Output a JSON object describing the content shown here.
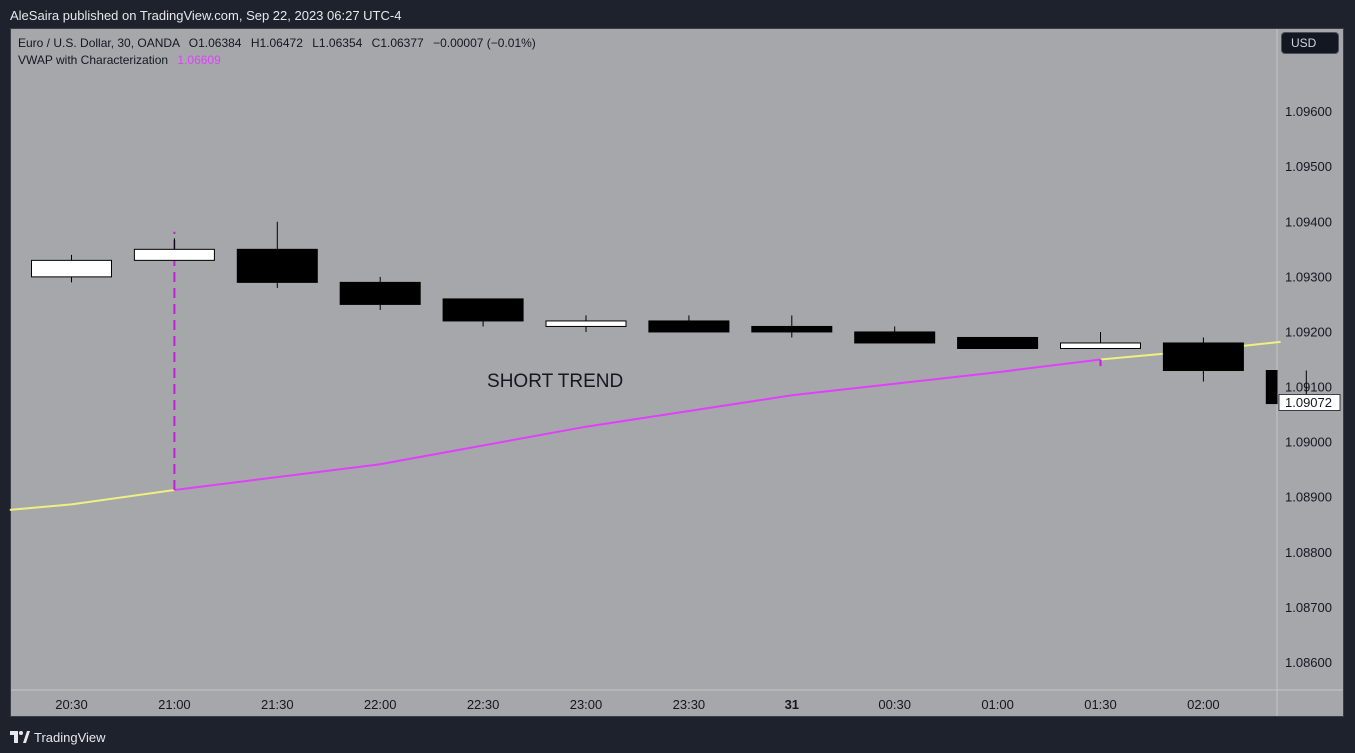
{
  "header": {
    "publisher_line": "AleSaira published on TradingView.com, Sep 22, 2023 06:27 UTC-4"
  },
  "legend": {
    "symbol": "Euro / U.S. Dollar, 30, OANDA",
    "o_label": "O",
    "o_value": "1.06384",
    "h_label": "H",
    "h_value": "1.06472",
    "l_label": "L",
    "l_value": "1.06354",
    "c_label": "C",
    "c_value": "1.06377",
    "change": "−0.00007 (−0.01%)",
    "indicator_name": "VWAP with Characterization",
    "indicator_value": "1.06609"
  },
  "currency_button": "USD",
  "brand": {
    "name": "TradingView"
  },
  "colors": {
    "background": "#a6a7ab",
    "up_candle": "#ffffff",
    "down_candle": "#000000",
    "vwap_normal": "#eef080",
    "vwap_highlight": "#e040fb",
    "marker_line": "#c21fd6"
  },
  "chart_data": {
    "type": "candlestick",
    "ylim": [
      1.0855,
      1.0975
    ],
    "x": [
      "20:30",
      "21:00",
      "21:30",
      "22:00",
      "22:30",
      "23:00",
      "23:30",
      "31",
      "00:30",
      "01:00",
      "01:30",
      "02:00",
      "02:30"
    ],
    "x_tick_labels": [
      "20:30",
      "21:00",
      "21:30",
      "22:00",
      "22:30",
      "23:00",
      "23:30",
      "31",
      "00:30",
      "01:00",
      "01:30",
      "02:00"
    ],
    "y_tick_labels": [
      "1.09600",
      "1.09500",
      "1.09400",
      "1.09300",
      "1.09200",
      "1.09100",
      "1.09000",
      "1.08900",
      "1.08800",
      "1.08700",
      "1.08600"
    ],
    "y_ticks": [
      1.096,
      1.095,
      1.094,
      1.093,
      1.092,
      1.091,
      1.09,
      1.089,
      1.088,
      1.087,
      1.086
    ],
    "candles": [
      {
        "t": "20:30",
        "o": 1.093,
        "h": 1.0934,
        "l": 1.0929,
        "c": 1.0933
      },
      {
        "t": "21:00",
        "o": 1.0933,
        "h": 1.0937,
        "l": 1.0933,
        "c": 1.0935
      },
      {
        "t": "21:30",
        "o": 1.0935,
        "h": 1.094,
        "l": 1.0928,
        "c": 1.0929
      },
      {
        "t": "22:00",
        "o": 1.0929,
        "h": 1.093,
        "l": 1.0924,
        "c": 1.0925
      },
      {
        "t": "22:30",
        "o": 1.0926,
        "h": 1.0926,
        "l": 1.0921,
        "c": 1.0922
      },
      {
        "t": "23:00",
        "o": 1.0921,
        "h": 1.0923,
        "l": 1.092,
        "c": 1.0922
      },
      {
        "t": "23:30",
        "o": 1.0922,
        "h": 1.0923,
        "l": 1.092,
        "c": 1.092
      },
      {
        "t": "31",
        "o": 1.0921,
        "h": 1.0923,
        "l": 1.0919,
        "c": 1.092
      },
      {
        "t": "00:30",
        "o": 1.092,
        "h": 1.0921,
        "l": 1.0918,
        "c": 1.0918
      },
      {
        "t": "01:00",
        "o": 1.0919,
        "h": 1.0919,
        "l": 1.0917,
        "c": 1.0917
      },
      {
        "t": "01:30",
        "o": 1.0917,
        "h": 1.092,
        "l": 1.0917,
        "c": 1.0918
      },
      {
        "t": "02:00",
        "o": 1.0918,
        "h": 1.0919,
        "l": 1.0911,
        "c": 1.0913
      },
      {
        "t": "02:30",
        "o": 1.0913,
        "h": 1.0913,
        "l": 1.0907,
        "c": 1.0907
      }
    ],
    "vwap": [
      {
        "x": -0.6,
        "y": 1.08877,
        "segment": "normal"
      },
      {
        "x": 0,
        "y": 1.08887,
        "segment": "normal"
      },
      {
        "x": 1,
        "y": 1.08913,
        "segment": "normal"
      },
      {
        "x": 1,
        "y": 1.08913,
        "segment": "highlight"
      },
      {
        "x": 3,
        "y": 1.0896,
        "segment": "highlight"
      },
      {
        "x": 5,
        "y": 1.09028,
        "segment": "highlight"
      },
      {
        "x": 7,
        "y": 1.09085,
        "segment": "highlight"
      },
      {
        "x": 9,
        "y": 1.09127,
        "segment": "highlight"
      },
      {
        "x": 10,
        "y": 1.0915,
        "segment": "highlight"
      },
      {
        "x": 10,
        "y": 1.0915,
        "segment": "normal"
      },
      {
        "x": 11,
        "y": 1.09167,
        "segment": "normal"
      },
      {
        "x": 11.75,
        "y": 1.09182,
        "segment": "normal"
      }
    ],
    "marker": {
      "x": 1,
      "y_from": 1.08913,
      "y_to": 1.09382
    },
    "annotation": {
      "text": "SHORT TREND",
      "x": 4.7,
      "y": 1.091
    },
    "last_price": "1.09072",
    "last_price_value": 1.09072
  }
}
